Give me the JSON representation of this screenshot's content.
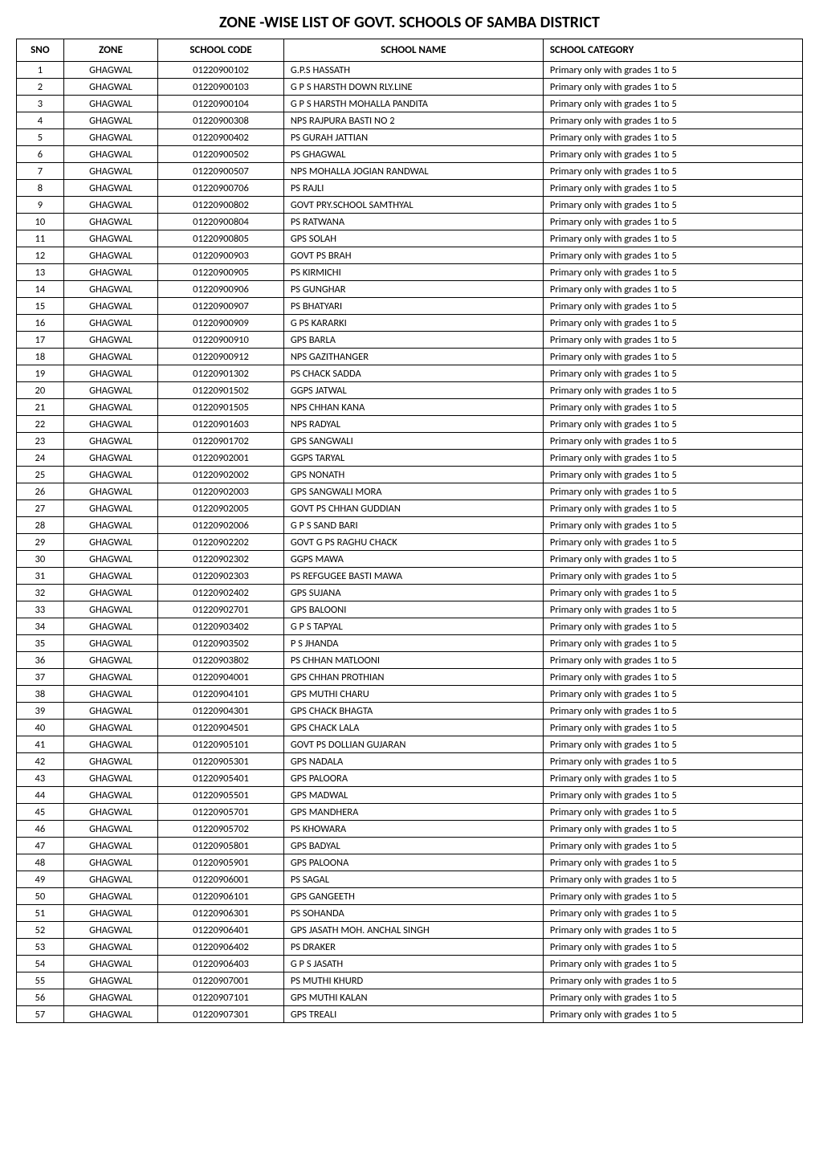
{
  "title": "ZONE -WISE LIST OF GOVT. SCHOOLS OF SAMBA DISTRICT",
  "headers": {
    "sno": "SNO",
    "zone": "ZONE",
    "code": "SCHOOL CODE",
    "name": "SCHOOL NAME",
    "category": "SCHOOL CATEGORY"
  },
  "rows": [
    {
      "sno": "1",
      "zone": "GHAGWAL",
      "code": "01220900102",
      "name": "G.P.S HASSATH",
      "category": "Primary only with grades 1 to 5"
    },
    {
      "sno": "2",
      "zone": "GHAGWAL",
      "code": "01220900103",
      "name": "G P S HARSTH DOWN RLY.LINE",
      "category": "Primary only with grades 1 to 5"
    },
    {
      "sno": "3",
      "zone": "GHAGWAL",
      "code": "01220900104",
      "name": "G P S HARSTH MOHALLA PANDITA",
      "category": "Primary only with grades 1 to 5"
    },
    {
      "sno": "4",
      "zone": "GHAGWAL",
      "code": "01220900308",
      "name": "NPS RAJPURA BASTI NO 2",
      "category": "Primary only with grades 1 to 5"
    },
    {
      "sno": "5",
      "zone": "GHAGWAL",
      "code": "01220900402",
      "name": "PS GURAH JATTIAN",
      "category": "Primary only with grades 1 to 5"
    },
    {
      "sno": "6",
      "zone": "GHAGWAL",
      "code": "01220900502",
      "name": "PS GHAGWAL",
      "category": "Primary only with grades 1 to 5"
    },
    {
      "sno": "7",
      "zone": "GHAGWAL",
      "code": "01220900507",
      "name": "NPS  MOHALLA JOGIAN RANDWAL",
      "category": "Primary only with grades 1 to 5"
    },
    {
      "sno": "8",
      "zone": "GHAGWAL",
      "code": "01220900706",
      "name": "PS RAJLI",
      "category": "Primary only with grades 1 to 5"
    },
    {
      "sno": "9",
      "zone": "GHAGWAL",
      "code": "01220900802",
      "name": "GOVT PRY.SCHOOL SAMTHYAL",
      "category": "Primary only with grades 1 to 5"
    },
    {
      "sno": "10",
      "zone": "GHAGWAL",
      "code": "01220900804",
      "name": "PS RATWANA",
      "category": "Primary only with grades 1 to 5"
    },
    {
      "sno": "11",
      "zone": "GHAGWAL",
      "code": "01220900805",
      "name": "GPS SOLAH",
      "category": "Primary only with grades 1 to 5"
    },
    {
      "sno": "12",
      "zone": "GHAGWAL",
      "code": "01220900903",
      "name": "GOVT PS BRAH",
      "category": "Primary only with grades 1 to 5"
    },
    {
      "sno": "13",
      "zone": "GHAGWAL",
      "code": "01220900905",
      "name": "PS KIRMICHI",
      "category": "Primary only with grades 1 to 5"
    },
    {
      "sno": "14",
      "zone": "GHAGWAL",
      "code": "01220900906",
      "name": "PS GUNGHAR",
      "category": "Primary only with grades 1 to 5"
    },
    {
      "sno": "15",
      "zone": "GHAGWAL",
      "code": "01220900907",
      "name": "PS BHATYARI",
      "category": "Primary only with grades 1 to 5"
    },
    {
      "sno": "16",
      "zone": "GHAGWAL",
      "code": "01220900909",
      "name": "G PS KARARKI",
      "category": "Primary only with grades 1 to 5"
    },
    {
      "sno": "17",
      "zone": "GHAGWAL",
      "code": "01220900910",
      "name": "GPS BARLA",
      "category": "Primary only with grades 1 to 5"
    },
    {
      "sno": "18",
      "zone": "GHAGWAL",
      "code": "01220900912",
      "name": "NPS GAZITHANGER",
      "category": "Primary only with grades 1 to 5"
    },
    {
      "sno": "19",
      "zone": "GHAGWAL",
      "code": "01220901302",
      "name": "PS CHACK SADDA",
      "category": "Primary only with grades 1 to 5"
    },
    {
      "sno": "20",
      "zone": "GHAGWAL",
      "code": "01220901502",
      "name": "GGPS JATWAL",
      "category": "Primary only with grades 1 to 5"
    },
    {
      "sno": "21",
      "zone": "GHAGWAL",
      "code": "01220901505",
      "name": "NPS CHHAN KANA",
      "category": "Primary only with grades 1 to 5"
    },
    {
      "sno": "22",
      "zone": "GHAGWAL",
      "code": "01220901603",
      "name": "NPS RADYAL",
      "category": "Primary only with grades 1 to 5"
    },
    {
      "sno": "23",
      "zone": "GHAGWAL",
      "code": "01220901702",
      "name": "GPS SANGWALI",
      "category": "Primary only with grades 1 to 5"
    },
    {
      "sno": "24",
      "zone": "GHAGWAL",
      "code": "01220902001",
      "name": "GGPS TARYAL",
      "category": "Primary only with grades 1 to 5"
    },
    {
      "sno": "25",
      "zone": "GHAGWAL",
      "code": "01220902002",
      "name": "GPS NONATH",
      "category": "Primary only with grades 1 to 5"
    },
    {
      "sno": "26",
      "zone": "GHAGWAL",
      "code": "01220902003",
      "name": "GPS SANGWALI MORA",
      "category": "Primary only with grades 1 to 5"
    },
    {
      "sno": "27",
      "zone": "GHAGWAL",
      "code": "01220902005",
      "name": "GOVT PS CHHAN GUDDIAN",
      "category": "Primary only with grades 1 to 5"
    },
    {
      "sno": "28",
      "zone": "GHAGWAL",
      "code": "01220902006",
      "name": "G P S SAND BARI",
      "category": "Primary only with grades 1 to 5"
    },
    {
      "sno": "29",
      "zone": "GHAGWAL",
      "code": "01220902202",
      "name": "GOVT G PS RAGHU CHACK",
      "category": "Primary only with grades 1 to 5"
    },
    {
      "sno": "30",
      "zone": "GHAGWAL",
      "code": "01220902302",
      "name": "GGPS MAWA",
      "category": "Primary only with grades 1 to 5"
    },
    {
      "sno": "31",
      "zone": "GHAGWAL",
      "code": "01220902303",
      "name": "PS REFGUGEE BASTI MAWA",
      "category": "Primary only with grades 1 to 5"
    },
    {
      "sno": "32",
      "zone": "GHAGWAL",
      "code": "01220902402",
      "name": "GPS SUJANA",
      "category": "Primary only with grades 1 to 5"
    },
    {
      "sno": "33",
      "zone": "GHAGWAL",
      "code": "01220902701",
      "name": "GPS BALOONI",
      "category": "Primary only with grades 1 to 5"
    },
    {
      "sno": "34",
      "zone": "GHAGWAL",
      "code": "01220903402",
      "name": "G P S TAPYAL",
      "category": "Primary only with grades 1 to 5"
    },
    {
      "sno": "35",
      "zone": "GHAGWAL",
      "code": "01220903502",
      "name": "P S JHANDA",
      "category": "Primary only with grades 1 to 5"
    },
    {
      "sno": "36",
      "zone": "GHAGWAL",
      "code": "01220903802",
      "name": "PS CHHAN MATLOONI",
      "category": "Primary only with grades 1 to 5"
    },
    {
      "sno": "37",
      "zone": "GHAGWAL",
      "code": "01220904001",
      "name": "GPS CHHAN PROTHIAN",
      "category": "Primary only with grades 1 to 5"
    },
    {
      "sno": "38",
      "zone": "GHAGWAL",
      "code": "01220904101",
      "name": "GPS MUTHI  CHARU",
      "category": "Primary only with grades 1 to 5"
    },
    {
      "sno": "39",
      "zone": "GHAGWAL",
      "code": "01220904301",
      "name": "GPS CHACK BHAGTA",
      "category": "Primary only with grades 1 to 5"
    },
    {
      "sno": "40",
      "zone": "GHAGWAL",
      "code": "01220904501",
      "name": "GPS CHACK LALA",
      "category": "Primary only with grades 1 to 5"
    },
    {
      "sno": "41",
      "zone": "GHAGWAL",
      "code": "01220905101",
      "name": "GOVT PS DOLLIAN  GUJARAN",
      "category": "Primary only with grades 1 to 5"
    },
    {
      "sno": "42",
      "zone": "GHAGWAL",
      "code": "01220905301",
      "name": "GPS NADALA",
      "category": "Primary only with grades 1 to 5"
    },
    {
      "sno": "43",
      "zone": "GHAGWAL",
      "code": "01220905401",
      "name": "GPS PALOORA",
      "category": "Primary only with grades 1 to 5"
    },
    {
      "sno": "44",
      "zone": "GHAGWAL",
      "code": "01220905501",
      "name": "GPS MADWAL",
      "category": "Primary only with grades 1 to 5"
    },
    {
      "sno": "45",
      "zone": "GHAGWAL",
      "code": "01220905701",
      "name": "GPS MANDHERA",
      "category": "Primary only with grades 1 to 5"
    },
    {
      "sno": "46",
      "zone": "GHAGWAL",
      "code": "01220905702",
      "name": "PS KHOWARA",
      "category": "Primary only with grades 1 to 5"
    },
    {
      "sno": "47",
      "zone": "GHAGWAL",
      "code": "01220905801",
      "name": "GPS BADYAL",
      "category": "Primary only with grades 1 to 5"
    },
    {
      "sno": "48",
      "zone": "GHAGWAL",
      "code": "01220905901",
      "name": "GPS PALOONA",
      "category": "Primary only with grades 1 to 5"
    },
    {
      "sno": "49",
      "zone": "GHAGWAL",
      "code": "01220906001",
      "name": "PS SAGAL",
      "category": "Primary only with grades 1 to 5"
    },
    {
      "sno": "50",
      "zone": "GHAGWAL",
      "code": "01220906101",
      "name": "GPS GANGEETH",
      "category": "Primary only with grades 1 to 5"
    },
    {
      "sno": "51",
      "zone": "GHAGWAL",
      "code": "01220906301",
      "name": "PS SOHANDA",
      "category": "Primary only with grades 1 to 5"
    },
    {
      "sno": "52",
      "zone": "GHAGWAL",
      "code": "01220906401",
      "name": "GPS JASATH MOH. ANCHAL SINGH",
      "category": "Primary only with grades 1 to 5"
    },
    {
      "sno": "53",
      "zone": "GHAGWAL",
      "code": "01220906402",
      "name": "PS DRAKER",
      "category": "Primary only with grades 1 to 5"
    },
    {
      "sno": "54",
      "zone": "GHAGWAL",
      "code": "01220906403",
      "name": "G P S JASATH",
      "category": "Primary only with grades 1 to 5"
    },
    {
      "sno": "55",
      "zone": "GHAGWAL",
      "code": "01220907001",
      "name": "PS MUTHI KHURD",
      "category": "Primary only with grades 1 to 5"
    },
    {
      "sno": "56",
      "zone": "GHAGWAL",
      "code": "01220907101",
      "name": "GPS MUTHI KALAN",
      "category": "Primary only with grades 1 to 5"
    },
    {
      "sno": "57",
      "zone": "GHAGWAL",
      "code": "01220907301",
      "name": "GPS TREALI",
      "category": "Primary only with grades 1 to 5"
    }
  ],
  "table_style": {
    "border_color": "#000000",
    "background_color": "#ffffff",
    "text_color": "#000000",
    "header_fontsize": 13,
    "cell_fontsize": 12.5,
    "title_fontsize": 20,
    "column_widths": {
      "sno": "6%",
      "zone": "12%",
      "code": "16%",
      "name": "33%",
      "category": "33%"
    }
  }
}
